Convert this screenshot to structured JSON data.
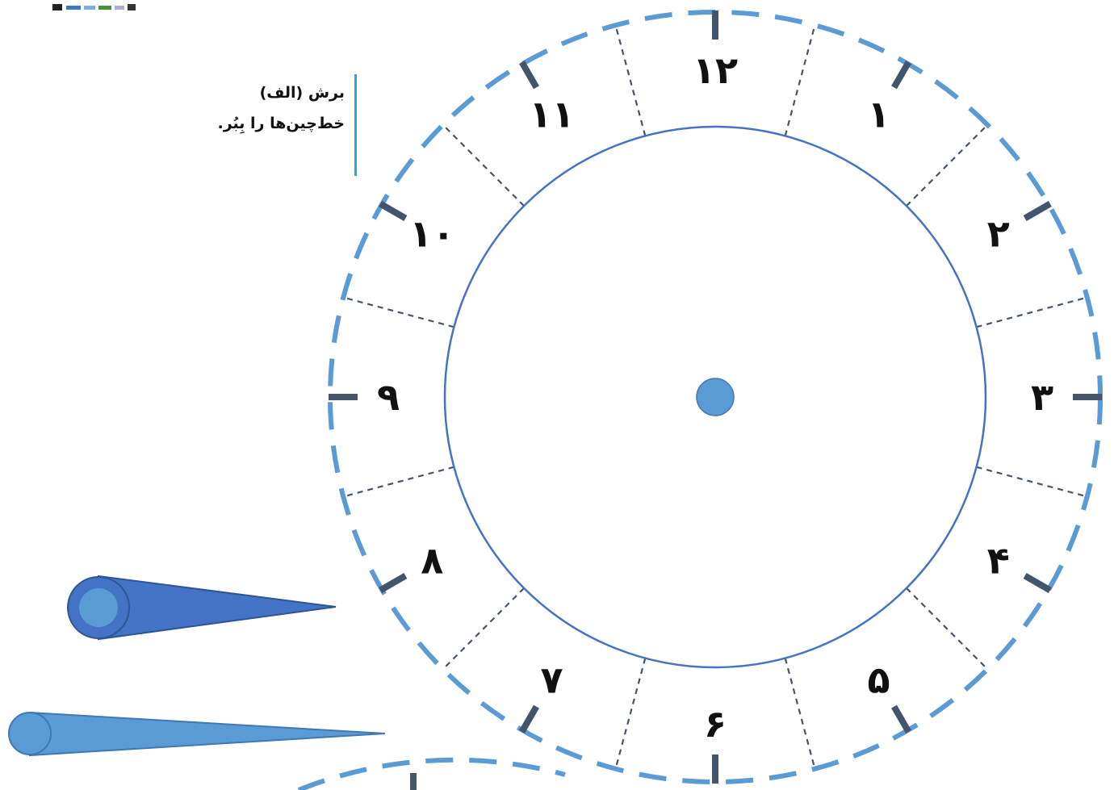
{
  "instruction": {
    "title": "برش (الف)",
    "body": "خط‌چین‌ها را بِبُر."
  },
  "clock": {
    "numbers": [
      "۱۲",
      "۱",
      "۲",
      "۳",
      "۴",
      "۵",
      "۶",
      "۷",
      "۸",
      "۹",
      "۱۰",
      "۱۱"
    ],
    "colors": {
      "outer_dashed_ring": "#5b9bd5",
      "inner_circle": "#4472c4",
      "tick_marks": "#44546a",
      "segment_dividers": "#44546a",
      "center_dot": "#5b9bd5",
      "hour_hand": "#4472c4",
      "minute_hand": "#5b9bd5"
    }
  },
  "hands": [
    {
      "name": "hour-hand"
    },
    {
      "name": "minute-hand"
    }
  ]
}
